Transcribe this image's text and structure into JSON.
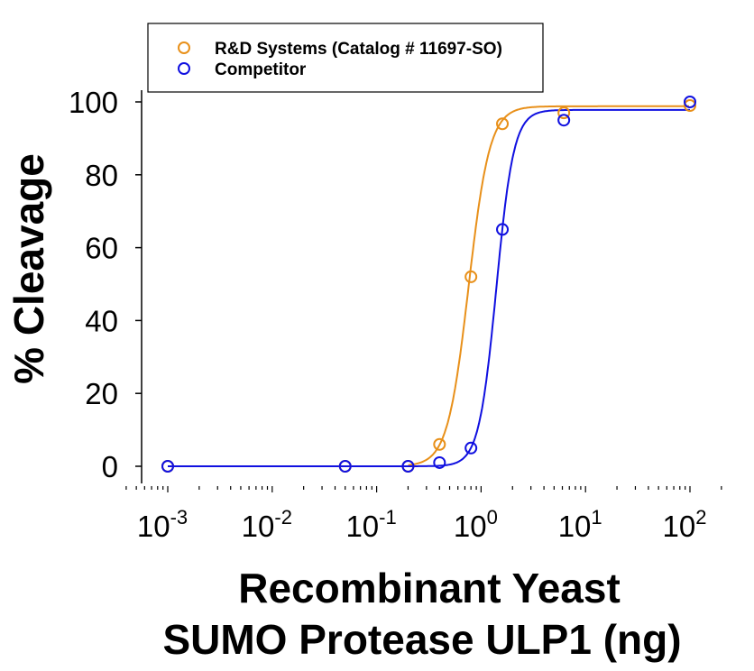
{
  "chart_data": {
    "type": "scatter",
    "title": "",
    "xlabel": [
      "Recombinant Yeast",
      "SUMO Protease ULP1 (ng)"
    ],
    "ylabel": "% Cleavage",
    "xscale": "log",
    "xlim": [
      0.0004,
      200
    ],
    "ylim": [
      0,
      100
    ],
    "xticks": [
      {
        "base": "10",
        "exp": "-3"
      },
      {
        "base": "10",
        "exp": "-2"
      },
      {
        "base": "10",
        "exp": "-1"
      },
      {
        "base": "10",
        "exp": "0"
      },
      {
        "base": "10",
        "exp": "1"
      },
      {
        "base": "10",
        "exp": "2"
      }
    ],
    "yticks": [
      "0",
      "20",
      "40",
      "60",
      "80",
      "100"
    ],
    "grid": false,
    "legend_position": "top",
    "series": [
      {
        "name": "R&D Systems (Catalog # 11697-SO)",
        "color": "#E8901A",
        "x": [
          0.001,
          0.05,
          0.2,
          0.4,
          0.8,
          1.6,
          6.2,
          100
        ],
        "y": [
          0,
          0,
          0,
          6,
          52,
          94,
          97,
          99
        ],
        "fit": {
          "model": "4PL",
          "bottom": 0,
          "top": 98.8,
          "ec50": 0.76,
          "hill": 4.3
        }
      },
      {
        "name": "Competitor",
        "color": "#1010E0",
        "x": [
          0.001,
          0.05,
          0.2,
          0.4,
          0.8,
          1.6,
          6.2,
          100
        ],
        "y": [
          0,
          0,
          0,
          1,
          5,
          65,
          95,
          100
        ],
        "fit": {
          "model": "4PL",
          "bottom": 0,
          "top": 97.8,
          "ec50": 1.4,
          "hill": 5.2
        }
      }
    ]
  }
}
